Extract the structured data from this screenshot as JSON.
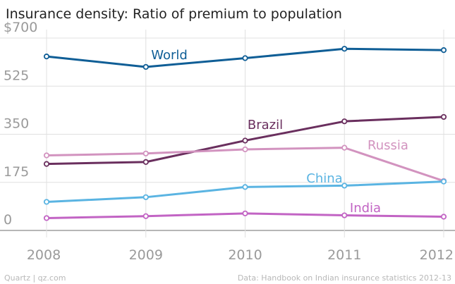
{
  "chart_data": {
    "type": "line",
    "title": "Insurance density: Ratio of premium to population",
    "xlabel": "",
    "ylabel": "",
    "x": [
      "2008",
      "2009",
      "2010",
      "2011",
      "2012"
    ],
    "y_ticks": [
      "$700",
      "525",
      "350",
      "175",
      "0"
    ],
    "y_tick_values": [
      700,
      525,
      350,
      175,
      0
    ],
    "ylim": [
      0,
      700
    ],
    "grid": true,
    "series": [
      {
        "name": "World",
        "label": "World",
        "color": "#0f5e96",
        "values": [
          633,
          595,
          627,
          661,
          656
        ]
      },
      {
        "name": "Brazil",
        "label": "Brazil",
        "color": "#6a2f5e",
        "values": [
          242,
          249,
          327,
          397,
          413
        ]
      },
      {
        "name": "Russia",
        "label": "Russia",
        "color": "#d293bf",
        "values": [
          273,
          280,
          295,
          301,
          180
        ]
      },
      {
        "name": "China",
        "label": "China",
        "color": "#5ab4e2",
        "values": [
          104,
          121,
          158,
          163,
          178
        ]
      },
      {
        "name": "India",
        "label": "India",
        "color": "#c264c4",
        "values": [
          45,
          52,
          62,
          55,
          50
        ]
      }
    ]
  },
  "footer": {
    "source_left": "Quartz | qz.com",
    "source_right": "Data: Handbook on Indian insurance statistics 2012-13"
  }
}
